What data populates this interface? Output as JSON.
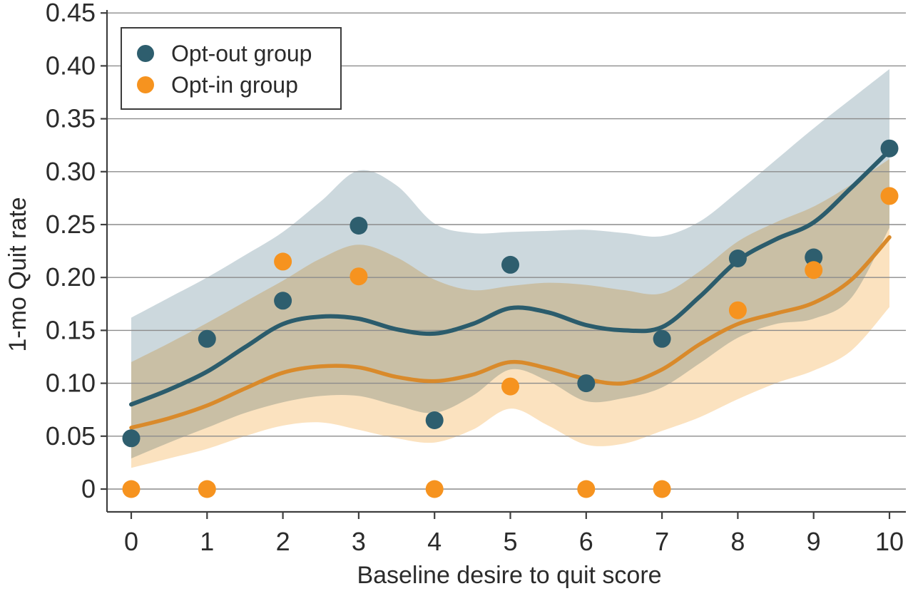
{
  "chart_data": {
    "type": "scatter",
    "subtype": "scatter-with-loess-smoother-and-confidence-bands",
    "title": "",
    "xlabel": "Baseline desire to quit score",
    "ylabel": "1-mo Quit rate",
    "xlim": [
      -0.32,
      10.22
    ],
    "ylim": [
      -0.022,
      0.455
    ],
    "xticks": [
      0,
      1,
      2,
      3,
      4,
      5,
      6,
      7,
      8,
      9,
      10
    ],
    "ytick_values": [
      0,
      0.05,
      0.1,
      0.15,
      0.2,
      0.25,
      0.3,
      0.35,
      0.4,
      0.45
    ],
    "ytick_labels": [
      "0",
      "0.05",
      "0.10",
      "0.15",
      "0.20",
      "0.25",
      "0.30",
      "0.35",
      "0.40",
      "0.45"
    ],
    "grid": "horizontal-on",
    "legend_position": "top-left",
    "series": [
      {
        "name": "Opt-out group",
        "point_color": "#2e5e6e",
        "line_color": "#2b5c6c",
        "band_color": "#ccd8dd",
        "points": [
          [
            0,
            0.048
          ],
          [
            1,
            0.142
          ],
          [
            2,
            0.178
          ],
          [
            3,
            0.249
          ],
          [
            4,
            0.065
          ],
          [
            5,
            0.212
          ],
          [
            6,
            0.1
          ],
          [
            7,
            0.142
          ],
          [
            8,
            0.218
          ],
          [
            9,
            0.219
          ],
          [
            10,
            0.322
          ]
        ],
        "trend": [
          [
            0,
            0.08
          ],
          [
            0.5,
            0.094
          ],
          [
            1,
            0.111
          ],
          [
            1.5,
            0.134
          ],
          [
            2,
            0.156
          ],
          [
            2.5,
            0.163
          ],
          [
            3,
            0.161
          ],
          [
            3.5,
            0.151
          ],
          [
            4,
            0.147
          ],
          [
            4.5,
            0.156
          ],
          [
            5,
            0.171
          ],
          [
            5.5,
            0.167
          ],
          [
            6,
            0.155
          ],
          [
            6.5,
            0.15
          ],
          [
            7,
            0.153
          ],
          [
            7.5,
            0.182
          ],
          [
            8,
            0.216
          ],
          [
            8.5,
            0.236
          ],
          [
            9,
            0.252
          ],
          [
            9.5,
            0.285
          ],
          [
            10,
            0.32
          ]
        ],
        "band_upper": [
          [
            0,
            0.162
          ],
          [
            0.5,
            0.181
          ],
          [
            1,
            0.2
          ],
          [
            1.5,
            0.221
          ],
          [
            2,
            0.243
          ],
          [
            2.5,
            0.272
          ],
          [
            3,
            0.301
          ],
          [
            3.5,
            0.287
          ],
          [
            4,
            0.251
          ],
          [
            4.5,
            0.242
          ],
          [
            5,
            0.243
          ],
          [
            5.5,
            0.244
          ],
          [
            6,
            0.245
          ],
          [
            6.5,
            0.242
          ],
          [
            7,
            0.239
          ],
          [
            7.5,
            0.253
          ],
          [
            8,
            0.281
          ],
          [
            8.5,
            0.311
          ],
          [
            9,
            0.341
          ],
          [
            9.5,
            0.369
          ],
          [
            10,
            0.397
          ]
        ],
        "band_lower": [
          [
            0,
            0.029
          ],
          [
            0.5,
            0.044
          ],
          [
            1,
            0.058
          ],
          [
            1.5,
            0.072
          ],
          [
            2,
            0.082
          ],
          [
            2.5,
            0.088
          ],
          [
            3,
            0.088
          ],
          [
            3.5,
            0.079
          ],
          [
            4,
            0.072
          ],
          [
            4.5,
            0.088
          ],
          [
            5,
            0.113
          ],
          [
            5.5,
            0.102
          ],
          [
            6,
            0.083
          ],
          [
            6.5,
            0.086
          ],
          [
            7,
            0.096
          ],
          [
            7.5,
            0.119
          ],
          [
            8,
            0.143
          ],
          [
            8.5,
            0.156
          ],
          [
            9,
            0.161
          ],
          [
            9.5,
            0.181
          ],
          [
            10,
            0.247
          ]
        ]
      },
      {
        "name": "Opt-in group",
        "point_color": "#f6931f",
        "line_color": "#d98a2b",
        "band_color": "#fbe2bf",
        "points": [
          [
            0,
            0
          ],
          [
            1,
            0
          ],
          [
            2,
            0.215
          ],
          [
            3,
            0.201
          ],
          [
            4,
            0
          ],
          [
            5,
            0.097
          ],
          [
            6,
            0
          ],
          [
            7,
            0
          ],
          [
            8,
            0.169
          ],
          [
            9,
            0.207
          ],
          [
            10,
            0.277
          ]
        ],
        "trend": [
          [
            0,
            0.058
          ],
          [
            0.5,
            0.067
          ],
          [
            1,
            0.079
          ],
          [
            1.5,
            0.095
          ],
          [
            2,
            0.11
          ],
          [
            2.5,
            0.116
          ],
          [
            3,
            0.115
          ],
          [
            3.5,
            0.106
          ],
          [
            4,
            0.102
          ],
          [
            4.5,
            0.108
          ],
          [
            5,
            0.12
          ],
          [
            5.5,
            0.114
          ],
          [
            6,
            0.104
          ],
          [
            6.5,
            0.1
          ],
          [
            7,
            0.113
          ],
          [
            7.5,
            0.137
          ],
          [
            8,
            0.156
          ],
          [
            8.5,
            0.166
          ],
          [
            9,
            0.176
          ],
          [
            9.5,
            0.198
          ],
          [
            10,
            0.238
          ]
        ],
        "band_upper": [
          [
            0,
            0.12
          ],
          [
            0.5,
            0.138
          ],
          [
            1,
            0.157
          ],
          [
            1.5,
            0.177
          ],
          [
            2,
            0.197
          ],
          [
            2.5,
            0.218
          ],
          [
            3,
            0.231
          ],
          [
            3.5,
            0.219
          ],
          [
            4,
            0.198
          ],
          [
            4.5,
            0.188
          ],
          [
            5,
            0.192
          ],
          [
            5.5,
            0.195
          ],
          [
            6,
            0.193
          ],
          [
            6.5,
            0.188
          ],
          [
            7,
            0.185
          ],
          [
            7.5,
            0.206
          ],
          [
            8,
            0.234
          ],
          [
            8.5,
            0.252
          ],
          [
            9,
            0.267
          ],
          [
            9.5,
            0.288
          ],
          [
            10,
            0.312
          ]
        ],
        "band_lower": [
          [
            0,
            0.02
          ],
          [
            0.5,
            0.029
          ],
          [
            1,
            0.038
          ],
          [
            1.5,
            0.05
          ],
          [
            2,
            0.06
          ],
          [
            2.5,
            0.063
          ],
          [
            3,
            0.056
          ],
          [
            3.5,
            0.048
          ],
          [
            4,
            0.044
          ],
          [
            4.5,
            0.056
          ],
          [
            5,
            0.076
          ],
          [
            5.5,
            0.06
          ],
          [
            6,
            0.042
          ],
          [
            6.5,
            0.043
          ],
          [
            7,
            0.055
          ],
          [
            7.5,
            0.068
          ],
          [
            8,
            0.085
          ],
          [
            8.5,
            0.1
          ],
          [
            9,
            0.112
          ],
          [
            9.5,
            0.131
          ],
          [
            10,
            0.172
          ]
        ]
      }
    ]
  },
  "legend": {
    "entries": [
      {
        "label": "Opt-out group",
        "marker": "circle",
        "color": "#2e5e6e"
      },
      {
        "label": "Opt-in group",
        "marker": "circle",
        "color": "#f6931f"
      }
    ]
  },
  "colors": {
    "optout_point": "#2e5e6e",
    "optout_line": "#2b5c6c",
    "optout_band": "#ccd8dd",
    "optin_point": "#f6931f",
    "optin_line": "#d98a2b",
    "optin_band": "#fbe2bf",
    "gridline": "#8c8c8c",
    "axis": "#3f3f3f",
    "text": "#2b2b2b",
    "legend_border": "#3c3c3c",
    "background": "#ffffff"
  }
}
